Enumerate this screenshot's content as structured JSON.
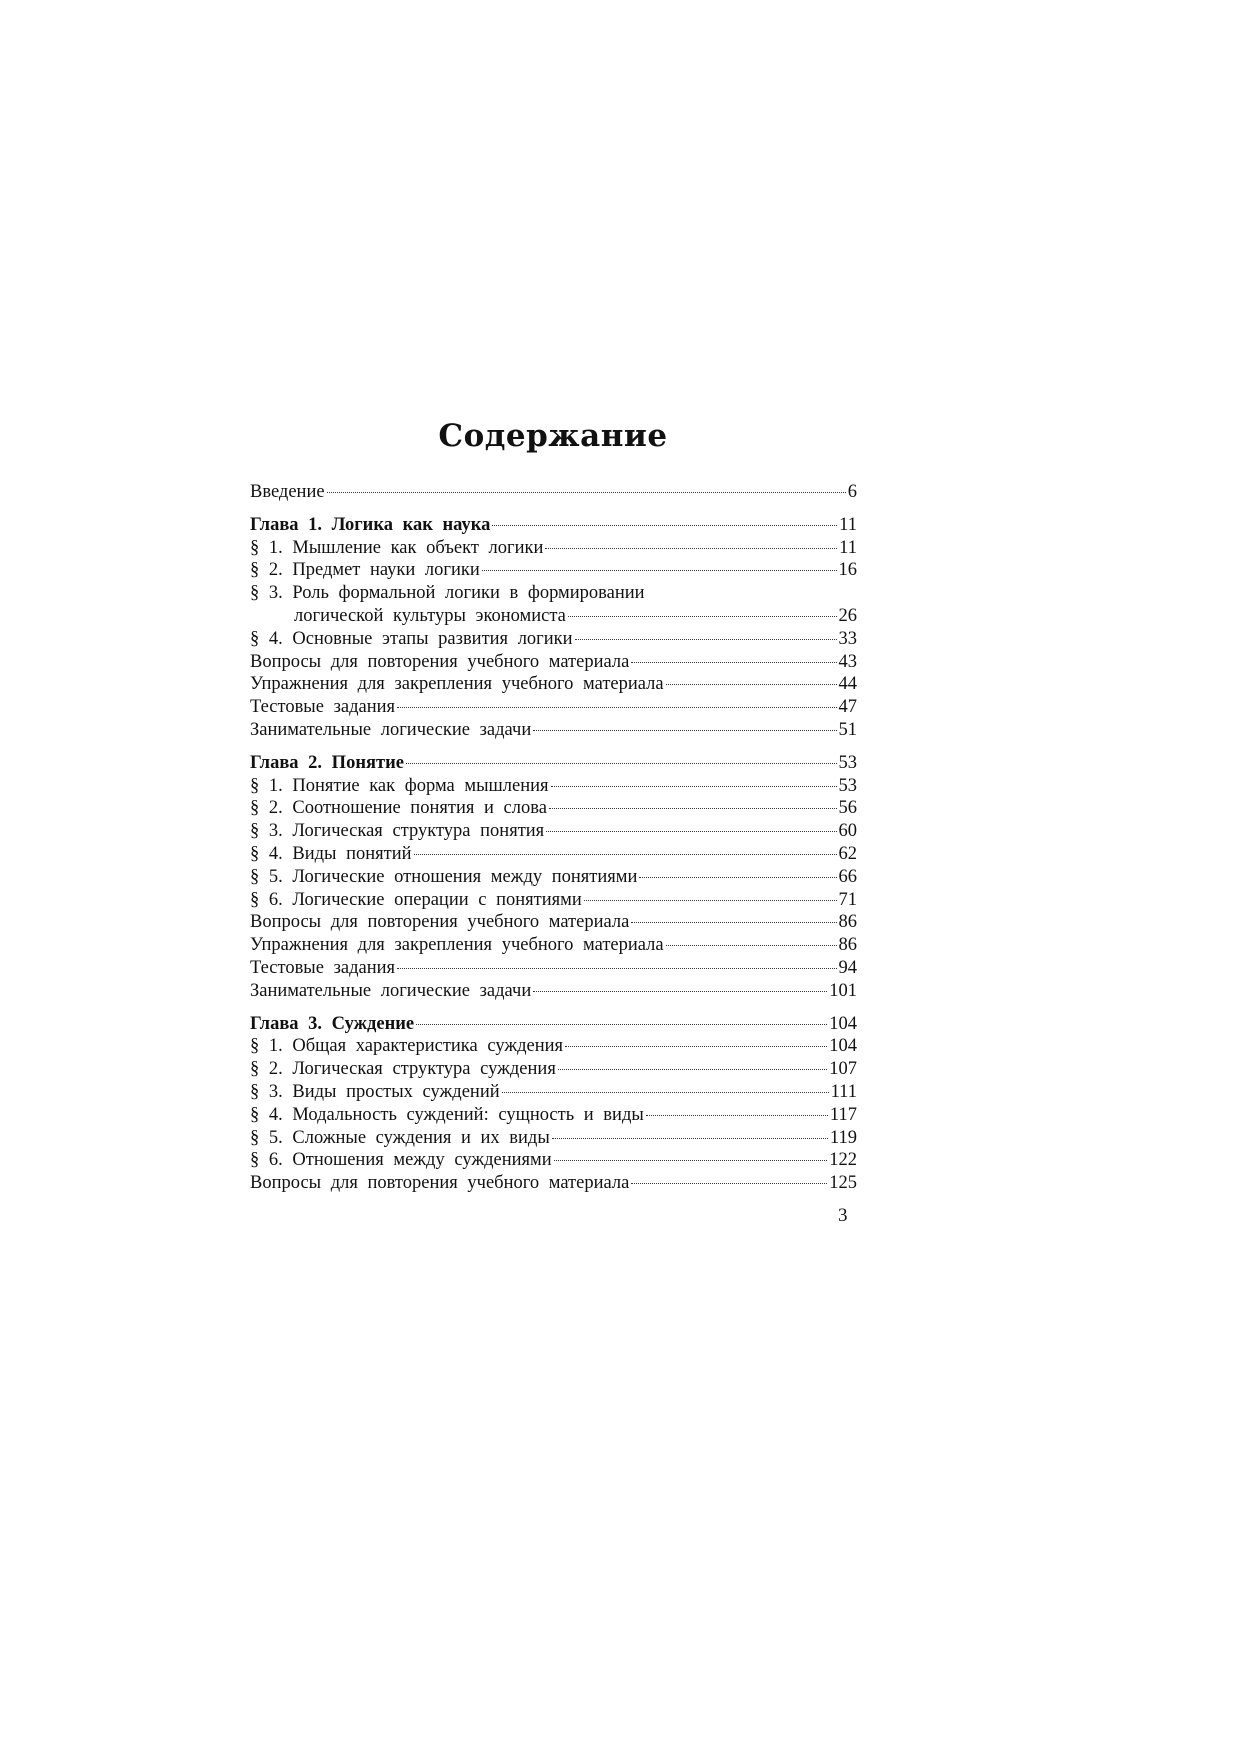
{
  "title": "Содержание",
  "entries": [
    {
      "text": "Введение",
      "page": "6"
    },
    {
      "text": "Глава 1. Логика как наука",
      "page": "11",
      "bold": true,
      "gap": true
    },
    {
      "text": "§ 1. Мышление как объект логики",
      "page": "11"
    },
    {
      "text": "§ 2. Предмет науки логики",
      "page": "16"
    },
    {
      "text": "§ 3. Роль формальной логики в формировании",
      "page": ""
    },
    {
      "text": "логической культуры экономиста",
      "page": "26",
      "indent": true
    },
    {
      "text": "§ 4. Основные этапы развития логики",
      "page": "33"
    },
    {
      "text": "Вопросы для повторения учебного материала",
      "page": "43"
    },
    {
      "text": "Упражнения для закрепления учебного материала",
      "page": "44"
    },
    {
      "text": "Тестовые задания",
      "page": "47"
    },
    {
      "text": "Занимательные логические задачи",
      "page": "51"
    },
    {
      "text": "Глава 2. Понятие",
      "page": "53",
      "bold": true,
      "gap": true
    },
    {
      "text": "§ 1. Понятие как форма мышления",
      "page": "53"
    },
    {
      "text": "§ 2. Соотношение понятия и слова",
      "page": "56"
    },
    {
      "text": "§ 3. Логическая структура понятия",
      "page": "60"
    },
    {
      "text": "§ 4. Виды понятий",
      "page": "62"
    },
    {
      "text": "§ 5. Логические отношения между понятиями",
      "page": "66"
    },
    {
      "text": "§ 6. Логические операции с понятиями",
      "page": "71"
    },
    {
      "text": "Вопросы для повторения учебного материала",
      "page": "86"
    },
    {
      "text": "Упражнения для закрепления учебного материала",
      "page": "86"
    },
    {
      "text": "Тестовые задания",
      "page": "94"
    },
    {
      "text": "Занимательные логические задачи",
      "page": "101"
    },
    {
      "text": "Глава 3. Суждение",
      "page": "104",
      "bold": true,
      "gap": true
    },
    {
      "text": "§ 1. Общая характеристика суждения",
      "page": "104"
    },
    {
      "text": "§ 2. Логическая структура суждения",
      "page": "107"
    },
    {
      "text": "§ 3. Виды простых суждений",
      "page": "111"
    },
    {
      "text": "§ 4. Модальность суждений: сущность и виды",
      "page": "117"
    },
    {
      "text": "§ 5. Сложные суждения и их виды",
      "page": "119"
    },
    {
      "text": "§ 6. Отношения между суждениями",
      "page": "122"
    },
    {
      "text": "Вопросы для повторения учебного материала",
      "page": "125"
    }
  ],
  "page_number": "3"
}
